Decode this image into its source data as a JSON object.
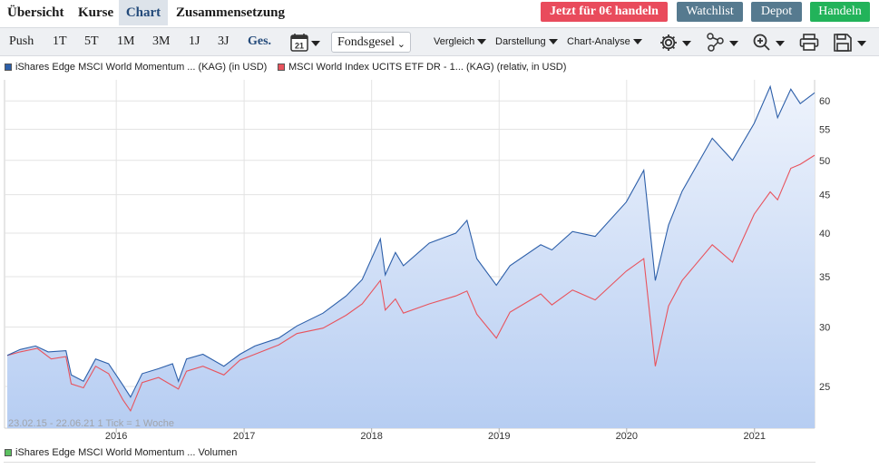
{
  "nav": {
    "tabs": [
      {
        "label": "Übersicht"
      },
      {
        "label": "Kurse"
      },
      {
        "label": "Chart",
        "active": true
      },
      {
        "label": "Zusammensetzung"
      }
    ],
    "buttons": {
      "trade_free": {
        "label": "Jetzt für 0€ handeln",
        "color": "#e94b5c"
      },
      "watchlist": {
        "label": "Watchlist",
        "color": "#567a8f"
      },
      "depot": {
        "label": "Depot",
        "color": "#567a8f"
      },
      "handeln": {
        "label": "Handeln",
        "color": "#22b35a"
      }
    }
  },
  "toolbar": {
    "periods": [
      "Push",
      "1T",
      "5T",
      "1M",
      "3M",
      "1J",
      "3J",
      "Ges."
    ],
    "active_period": "Ges.",
    "calendar_day": "21",
    "fund_select": "Fondsgesel",
    "menus": [
      "Vergleich",
      "Darstellung",
      "Chart-Analyse"
    ],
    "icons": [
      "gear-icon",
      "nodes-icon",
      "zoom-icon",
      "print-icon",
      "save-icon"
    ]
  },
  "legend": {
    "series1": "iShares Edge MSCI World Momentum ... (KAG) (in USD)",
    "series2": "MSCI World Index UCITS ETF DR - 1... (KAG) (relativ, in USD)"
  },
  "range_label": "23.02.15 - 22.06.21   1 Tick = 1 Woche",
  "volume_legend": "iShares Edge MSCI World Momentum ... Volumen",
  "chart_data": {
    "type": "area",
    "yscale": "log",
    "ylim": [
      22,
      64
    ],
    "y_ticks": [
      25,
      30,
      35,
      40,
      45,
      50,
      55,
      60
    ],
    "x_ticks": [
      "2016",
      "2017",
      "2018",
      "2019",
      "2020",
      "2021"
    ],
    "x_range": [
      "2015-02-23",
      "2021-06-22"
    ],
    "grid": true,
    "legend_position": "top-left",
    "series": [
      {
        "name": "iShares Edge MSCI World Momentum ... (KAG) (in USD)",
        "color": "#2d5fa9",
        "fill": true,
        "points": [
          [
            "2015-02-23",
            27.5
          ],
          [
            "2015-04-01",
            28.0
          ],
          [
            "2015-05-15",
            28.3
          ],
          [
            "2015-06-20",
            27.8
          ],
          [
            "2015-08-10",
            27.9
          ],
          [
            "2015-08-25",
            25.9
          ],
          [
            "2015-09-29",
            25.4
          ],
          [
            "2015-11-03",
            27.2
          ],
          [
            "2015-12-10",
            26.8
          ],
          [
            "2016-01-20",
            25.1
          ],
          [
            "2016-02-11",
            24.2
          ],
          [
            "2016-03-15",
            26.0
          ],
          [
            "2016-05-01",
            26.4
          ],
          [
            "2016-06-10",
            26.8
          ],
          [
            "2016-06-27",
            25.4
          ],
          [
            "2016-07-20",
            27.2
          ],
          [
            "2016-09-05",
            27.6
          ],
          [
            "2016-11-04",
            26.6
          ],
          [
            "2016-12-20",
            27.6
          ],
          [
            "2017-02-01",
            28.3
          ],
          [
            "2017-04-10",
            29.0
          ],
          [
            "2017-06-01",
            30.1
          ],
          [
            "2017-08-15",
            31.3
          ],
          [
            "2017-10-20",
            33.0
          ],
          [
            "2017-12-05",
            34.7
          ],
          [
            "2018-01-26",
            39.3
          ],
          [
            "2018-02-09",
            35.2
          ],
          [
            "2018-03-10",
            37.7
          ],
          [
            "2018-04-02",
            36.2
          ],
          [
            "2018-06-15",
            38.8
          ],
          [
            "2018-08-30",
            40.0
          ],
          [
            "2018-10-01",
            41.6
          ],
          [
            "2018-10-29",
            37.0
          ],
          [
            "2018-12-24",
            34.1
          ],
          [
            "2019-02-01",
            36.2
          ],
          [
            "2019-04-30",
            38.6
          ],
          [
            "2019-06-01",
            38.0
          ],
          [
            "2019-07-30",
            40.2
          ],
          [
            "2019-10-03",
            39.6
          ],
          [
            "2019-12-31",
            44.0
          ],
          [
            "2020-02-19",
            48.5
          ],
          [
            "2020-03-23",
            34.6
          ],
          [
            "2020-04-30",
            41.0
          ],
          [
            "2020-06-08",
            45.5
          ],
          [
            "2020-09-02",
            53.5
          ],
          [
            "2020-10-30",
            50.0
          ],
          [
            "2020-12-31",
            56.0
          ],
          [
            "2021-02-15",
            62.7
          ],
          [
            "2021-03-08",
            57.0
          ],
          [
            "2021-04-15",
            62.2
          ],
          [
            "2021-05-12",
            59.5
          ],
          [
            "2021-06-22",
            61.5
          ]
        ]
      },
      {
        "name": "MSCI World Index UCITS ETF DR - 1... (KAG) (relativ, in USD)",
        "color": "#e8535d",
        "fill": false,
        "points": [
          [
            "2015-02-23",
            27.5
          ],
          [
            "2015-04-01",
            27.8
          ],
          [
            "2015-05-20",
            28.1
          ],
          [
            "2015-06-29",
            27.2
          ],
          [
            "2015-08-10",
            27.4
          ],
          [
            "2015-08-25",
            25.2
          ],
          [
            "2015-09-29",
            24.9
          ],
          [
            "2015-11-03",
            26.6
          ],
          [
            "2015-12-10",
            26.0
          ],
          [
            "2016-01-20",
            24.0
          ],
          [
            "2016-02-11",
            23.2
          ],
          [
            "2016-03-15",
            25.3
          ],
          [
            "2016-05-01",
            25.7
          ],
          [
            "2016-06-27",
            24.8
          ],
          [
            "2016-07-20",
            26.2
          ],
          [
            "2016-09-05",
            26.6
          ],
          [
            "2016-11-04",
            25.9
          ],
          [
            "2016-12-20",
            27.1
          ],
          [
            "2017-02-01",
            27.6
          ],
          [
            "2017-04-10",
            28.4
          ],
          [
            "2017-06-01",
            29.4
          ],
          [
            "2017-08-15",
            29.9
          ],
          [
            "2017-10-20",
            31.1
          ],
          [
            "2017-12-05",
            32.2
          ],
          [
            "2018-01-26",
            34.6
          ],
          [
            "2018-02-09",
            31.6
          ],
          [
            "2018-03-10",
            32.7
          ],
          [
            "2018-04-02",
            31.3
          ],
          [
            "2018-06-15",
            32.2
          ],
          [
            "2018-08-30",
            33.0
          ],
          [
            "2018-10-01",
            33.5
          ],
          [
            "2018-10-29",
            31.2
          ],
          [
            "2018-12-24",
            29.0
          ],
          [
            "2019-02-01",
            31.4
          ],
          [
            "2019-04-30",
            33.2
          ],
          [
            "2019-06-01",
            32.1
          ],
          [
            "2019-07-30",
            33.6
          ],
          [
            "2019-10-03",
            32.6
          ],
          [
            "2019-12-31",
            35.6
          ],
          [
            "2020-02-19",
            37.0
          ],
          [
            "2020-03-23",
            26.6
          ],
          [
            "2020-04-30",
            32.0
          ],
          [
            "2020-06-08",
            34.6
          ],
          [
            "2020-09-02",
            38.6
          ],
          [
            "2020-10-30",
            36.6
          ],
          [
            "2020-12-31",
            42.4
          ],
          [
            "2021-02-15",
            45.4
          ],
          [
            "2021-03-08",
            44.3
          ],
          [
            "2021-04-15",
            48.8
          ],
          [
            "2021-05-12",
            49.4
          ],
          [
            "2021-06-22",
            50.8
          ]
        ]
      }
    ]
  }
}
